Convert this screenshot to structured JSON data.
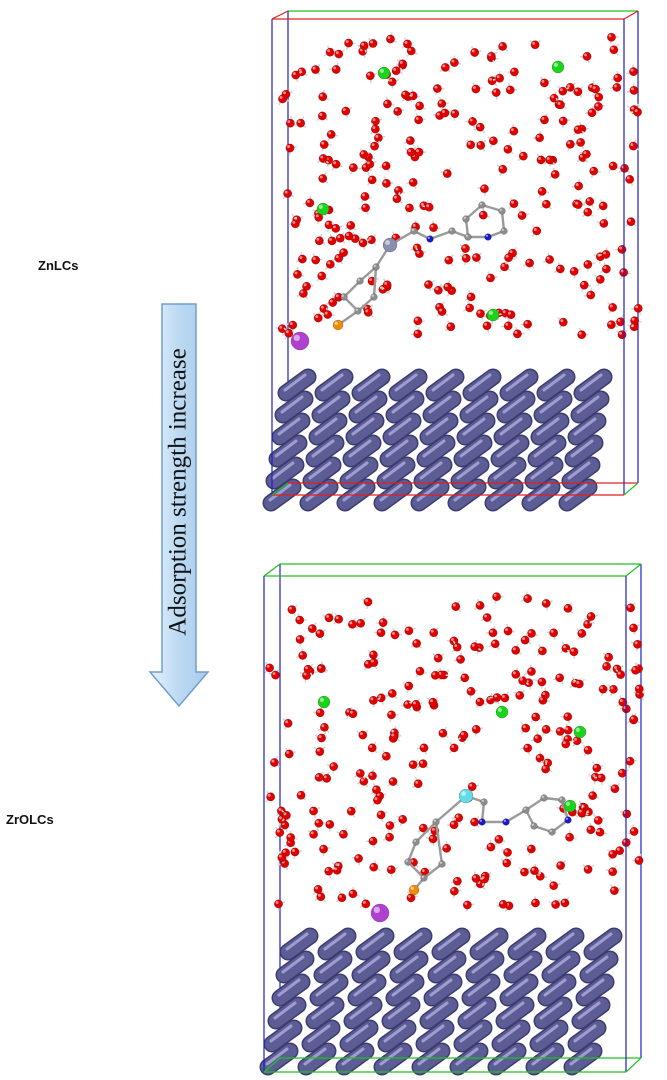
{
  "figure": {
    "arrow_label": "Adsorption strength increase",
    "panels": [
      {
        "label": "ZnLCs"
      },
      {
        "label": "ZrOLCs"
      }
    ],
    "colors": {
      "oxygen": "#e00000",
      "hydrogen": "#d6d6d6",
      "chloride": "#19d419",
      "carbon": "#8d8d8d",
      "nitrogen": "#1a1acc",
      "zinc": "#8a8fae",
      "zirconium": "#66dbe8",
      "phosphorus": "#f08a00",
      "potassium": "#b040d0",
      "surface": "#5d5d95",
      "box_blue": "#2020c8",
      "box_red": "#e02020",
      "box_green": "#20c020",
      "arrow_fill": "#bcd9f2",
      "arrow_stroke": "#6f9fcf"
    }
  }
}
